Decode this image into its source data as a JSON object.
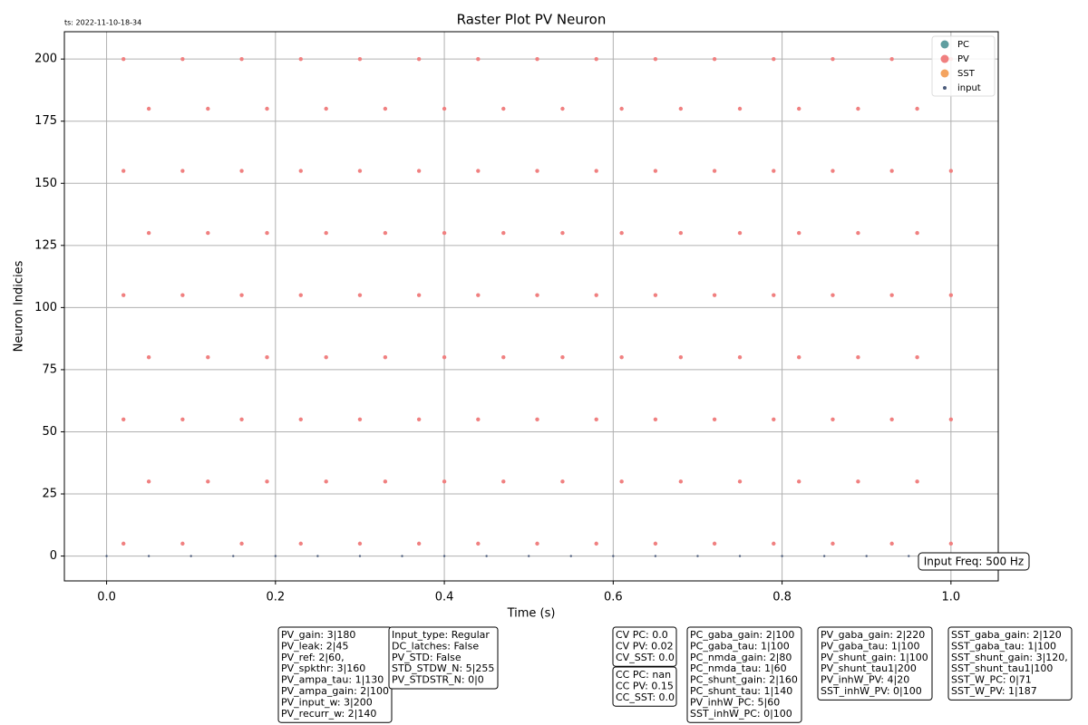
{
  "timestamp": "ts: 2022-11-10-18-34",
  "chart_data": {
    "type": "scatter",
    "title": "Raster Plot PV Neuron",
    "x_label": "Time (s)",
    "y_label": "Neuron Indicies",
    "xlim": [
      -0.05,
      1.056
    ],
    "ylim": [
      -10,
      211
    ],
    "xticks": [
      {
        "value": 0,
        "label": "0.0"
      },
      0.2,
      0.4,
      0.6,
      0.8,
      {
        "value": 1,
        "label": "1.0"
      }
    ],
    "yticks": [
      0,
      25,
      50,
      75,
      100,
      125,
      150,
      175,
      200
    ],
    "grid": true,
    "legend": "upper right",
    "series": [
      {
        "name": "PC",
        "color": "#5f9ea0",
        "x": [],
        "y": []
      },
      {
        "name": "PV",
        "color": "#f08080",
        "x": [
          0.02,
          0.09,
          0.16,
          0.23,
          0.3,
          0.37,
          0.44,
          0.51,
          0.58,
          0.65,
          0.72,
          0.79,
          0.86,
          0.93,
          1.0,
          0.05,
          0.12,
          0.19,
          0.26,
          0.33,
          0.4,
          0.47,
          0.54,
          0.61,
          0.68,
          0.75,
          0.82,
          0.89,
          0.96,
          0.02,
          0.09,
          0.16,
          0.23,
          0.3,
          0.37,
          0.44,
          0.51,
          0.58,
          0.65,
          0.72,
          0.79,
          0.86,
          0.93,
          1.0,
          0.05,
          0.12,
          0.19,
          0.26,
          0.33,
          0.4,
          0.47,
          0.54,
          0.61,
          0.68,
          0.75,
          0.82,
          0.89,
          0.96,
          0.02,
          0.09,
          0.16,
          0.23,
          0.3,
          0.37,
          0.44,
          0.51,
          0.58,
          0.65,
          0.72,
          0.79,
          0.86,
          0.93,
          1.0,
          0.05,
          0.12,
          0.19,
          0.26,
          0.33,
          0.4,
          0.47,
          0.54,
          0.61,
          0.68,
          0.75,
          0.82,
          0.89,
          0.96,
          0.02,
          0.09,
          0.16,
          0.23,
          0.3,
          0.37,
          0.44,
          0.51,
          0.58,
          0.65,
          0.72,
          0.79,
          0.86,
          0.93,
          1.0,
          0.05,
          0.12,
          0.19,
          0.26,
          0.33,
          0.4,
          0.47,
          0.54,
          0.61,
          0.68,
          0.75,
          0.82,
          0.89,
          0.96,
          0.02,
          0.09,
          0.16,
          0.23,
          0.3,
          0.37,
          0.44,
          0.51,
          0.58,
          0.65,
          0.72,
          0.79,
          0.86,
          0.93,
          1.0
        ],
        "y": [
          5,
          5,
          5,
          5,
          5,
          5,
          5,
          5,
          5,
          5,
          5,
          5,
          5,
          5,
          5,
          30,
          30,
          30,
          30,
          30,
          30,
          30,
          30,
          30,
          30,
          30,
          30,
          30,
          30,
          55,
          55,
          55,
          55,
          55,
          55,
          55,
          55,
          55,
          55,
          55,
          55,
          55,
          55,
          55,
          80,
          80,
          80,
          80,
          80,
          80,
          80,
          80,
          80,
          80,
          80,
          80,
          80,
          80,
          105,
          105,
          105,
          105,
          105,
          105,
          105,
          105,
          105,
          105,
          105,
          105,
          105,
          105,
          105,
          130,
          130,
          130,
          130,
          130,
          130,
          130,
          130,
          130,
          130,
          130,
          130,
          130,
          130,
          155,
          155,
          155,
          155,
          155,
          155,
          155,
          155,
          155,
          155,
          155,
          155,
          155,
          155,
          155,
          180,
          180,
          180,
          180,
          180,
          180,
          180,
          180,
          180,
          180,
          180,
          180,
          180,
          180,
          200,
          200,
          200,
          200,
          200,
          200,
          200,
          200,
          200,
          200,
          200,
          200,
          200,
          200,
          200
        ]
      },
      {
        "name": "SST",
        "color": "#f4a460",
        "x": [],
        "y": []
      },
      {
        "name": "input",
        "color": "#4a5a7a",
        "x": [
          0,
          0.05,
          0.1,
          0.15,
          0.2,
          0.25,
          0.3,
          0.35,
          0.4,
          0.45,
          0.5,
          0.55,
          0.6,
          0.65,
          0.7,
          0.75,
          0.8,
          0.85,
          0.9,
          0.95,
          1.0
        ],
        "y": [
          0,
          0,
          0,
          0,
          0,
          0,
          0,
          0,
          0,
          0,
          0,
          0,
          0,
          0,
          0,
          0,
          0,
          0,
          0,
          0,
          0
        ]
      }
    ],
    "annotation": "Input Freq: 500 Hz"
  },
  "text_boxes": [
    {
      "lines": [
        "PV_gain: 3|180",
        "PV_leak: 2|45",
        "PV_ref: 2|60,",
        "PV_spkthr: 3|160",
        "PV_ampa_tau: 1|130",
        "PV_ampa_gain: 2|100",
        "PV_input_w: 3|200",
        "PV_recurr_w: 2|140"
      ]
    },
    {
      "lines": [
        "Input_type: Regular",
        "DC_latches: False",
        "PV_STD: False",
        "STD_STDW_N: 5|255",
        "PV_STDSTR_N: 0|0"
      ]
    },
    {
      "lines": [
        "CV PC: 0.0",
        "CV PV: 0.02",
        "CV_SST: 0.0"
      ]
    },
    {
      "lines": [
        "CC PC: nan",
        "CC PV: 0.15",
        "CC_SST: 0.0"
      ]
    },
    {
      "lines": [
        "PC_gaba_gain: 2|100",
        "PC_gaba_tau: 1|100",
        "PC_nmda_gain: 2|80",
        "PC_nmda_tau: 1|60",
        "PC_shunt_gain: 2|160",
        "PC_shunt_tau: 1|140",
        "PV_inhW_PC: 5|60",
        "SST_inhW_PC: 0|100"
      ]
    },
    {
      "lines": [
        "PV_gaba_gain: 2|220",
        "PV_gaba_tau: 1|100",
        "PV_shunt_gain: 1|100",
        "PV_shunt_tau1|200",
        "PV_inhW_PV: 4|20",
        "SST_inhW_PV: 0|100"
      ]
    },
    {
      "lines": [
        "SST_gaba_gain: 2|120",
        "SST_gaba_tau: 1|100",
        "SST_shunt_gain: 3|120,",
        "SST_shunt_tau1|100",
        "SST_W_PC: 0|71",
        "SST_W_PV: 1|187"
      ]
    }
  ]
}
